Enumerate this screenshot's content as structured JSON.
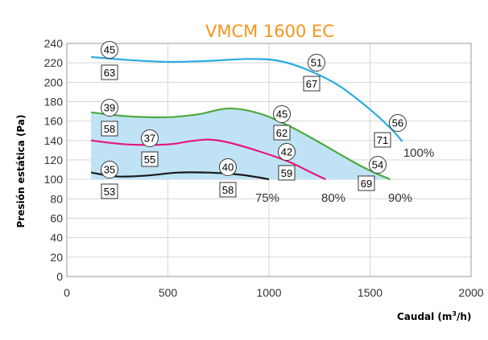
{
  "chart_data": {
    "type": "line",
    "title": "VMCM 1600 EC",
    "xlabel": "Caudal (m³/h)",
    "xlabel_main": "Caudal (m",
    "xlabel_sup": "3",
    "xlabel_end": "/h)",
    "ylabel": "Presión estática (Pa)",
    "xlim": [
      0,
      2000
    ],
    "ylim": [
      0,
      240
    ],
    "xticks": [
      "0",
      "500",
      "1000",
      "1500",
      "2000"
    ],
    "yticks": [
      "0",
      "20",
      "40",
      "60",
      "80",
      "100",
      "120",
      "140",
      "160",
      "180",
      "200",
      "220",
      "240"
    ],
    "grid": true,
    "shaded_region": {
      "color": "#BFE3F5",
      "y_floor": 100
    },
    "series": [
      {
        "label": "100%",
        "color": "#29ABE2",
        "x": [
          120,
          300,
          500,
          700,
          900,
          1050,
          1200,
          1350,
          1500,
          1600,
          1660
        ],
        "y": [
          226,
          223,
          221,
          222,
          224,
          222,
          212,
          196,
          172,
          153,
          139
        ]
      },
      {
        "label": "90%",
        "color": "#4DAA3E",
        "x": [
          120,
          300,
          500,
          650,
          800,
          950,
          1100,
          1250,
          1400,
          1500,
          1600
        ],
        "y": [
          169,
          165,
          164,
          167,
          173,
          168,
          155,
          138,
          120,
          109,
          100
        ]
      },
      {
        "label": "80%",
        "color": "#E6177A",
        "x": [
          120,
          300,
          500,
          600,
          700,
          800,
          950,
          1100,
          1200,
          1280
        ],
        "y": [
          140,
          136,
          136,
          139,
          141,
          138,
          129,
          118,
          108,
          100
        ]
      },
      {
        "label": "75%",
        "color": "#1A1A1A",
        "x": [
          120,
          250,
          400,
          550,
          700,
          850,
          950,
          1000
        ],
        "y": [
          107,
          103,
          104,
          107,
          107,
          105,
          102,
          100
        ]
      }
    ],
    "annotations": {
      "circles": [
        {
          "text": "45",
          "x": 265,
          "y": 78
        },
        {
          "text": "39",
          "x": 265,
          "y": 135
        },
        {
          "text": "37",
          "x": 790,
          "y": 285
        },
        {
          "text": "35",
          "x": 265,
          "y": 205
        },
        {
          "text": "51",
          "x": 1945,
          "y": 325
        },
        {
          "text": "45",
          "x": 1795,
          "y": 345
        },
        {
          "text": "42",
          "x": 1445,
          "y": 510
        },
        {
          "text": "40",
          "x": 1245,
          "y": 700
        },
        {
          "text": "56",
          "x": 1675,
          "y": 405
        },
        {
          "text": "54",
          "x": 1600,
          "y": 505
        }
      ],
      "boxes": [
        {
          "text": "63",
          "x": 265,
          "y": 78
        },
        {
          "text": "58",
          "x": 265,
          "y": 135
        },
        {
          "text": "55",
          "x": 790,
          "y": 285
        },
        {
          "text": "53",
          "x": 265,
          "y": 205
        },
        {
          "text": "67",
          "x": 1945,
          "y": 325
        },
        {
          "text": "62",
          "x": 1795,
          "y": 345
        },
        {
          "text": "59",
          "x": 1445,
          "y": 510
        },
        {
          "text": "58",
          "x": 1245,
          "y": 700
        },
        {
          "text": "71",
          "x": 1675,
          "y": 405
        },
        {
          "text": "69",
          "x": 1600,
          "y": 505
        }
      ]
    }
  }
}
